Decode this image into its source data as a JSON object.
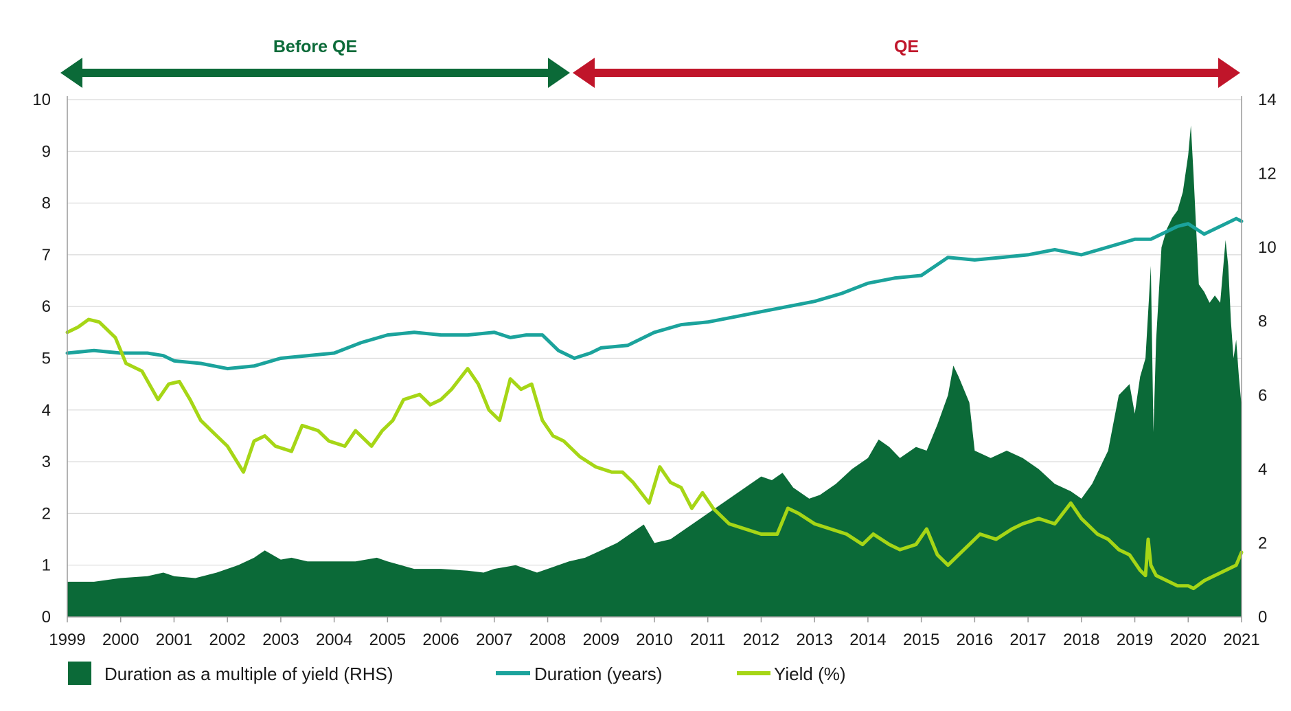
{
  "colors": {
    "area": "#0b6a38",
    "duration": "#1ba39c",
    "yield": "#a6d616",
    "before_qe": "#0b6a38",
    "qe": "#c0152a",
    "grid": "#d9d9d9",
    "axis": "#999999"
  },
  "annotations": {
    "before_qe": "Before QE",
    "qe": "QE"
  },
  "legend": {
    "area": "Duration as a multiple of yield (RHS)",
    "duration": "Duration (years)",
    "yield": "Yield (%)"
  },
  "chart_data": {
    "type": "area+line",
    "x_ticks": [
      "1999",
      "2000",
      "2001",
      "2002",
      "2003",
      "2004",
      "2005",
      "2006",
      "2007",
      "2008",
      "2009",
      "2010",
      "2011",
      "2012",
      "2013",
      "2014",
      "2015",
      "2016",
      "2017",
      "2018",
      "2019",
      "2020",
      "2021"
    ],
    "left_axis": {
      "ticks": [
        "0",
        "1",
        "2",
        "3",
        "4",
        "5",
        "6",
        "7",
        "8",
        "9",
        "10"
      ],
      "ylim": [
        0,
        10
      ]
    },
    "right_axis": {
      "ticks": [
        "0",
        "2",
        "4",
        "6",
        "8",
        "10",
        "12",
        "14"
      ],
      "ylim": [
        0,
        14
      ]
    },
    "annotation_ranges": {
      "before_qe": [
        1999.0,
        2008.7
      ],
      "qe": [
        2008.7,
        2021.0
      ]
    },
    "series": [
      {
        "name": "Duration as a multiple of yield (RHS)",
        "axis": "right",
        "kind": "area",
        "x": [
          1999.0,
          1999.5,
          2000.0,
          2000.5,
          2000.8,
          2001.0,
          2001.4,
          2001.8,
          2002.2,
          2002.5,
          2002.7,
          2003.0,
          2003.2,
          2003.5,
          2004.0,
          2004.4,
          2004.8,
          2005.0,
          2005.5,
          2006.0,
          2006.5,
          2006.8,
          2007.0,
          2007.4,
          2007.8,
          2008.0,
          2008.4,
          2008.7,
          2009.0,
          2009.3,
          2009.6,
          2009.8,
          2010.0,
          2010.3,
          2010.6,
          2010.9,
          2011.2,
          2011.5,
          2011.8,
          2012.0,
          2012.2,
          2012.4,
          2012.6,
          2012.9,
          2013.1,
          2013.4,
          2013.7,
          2014.0,
          2014.2,
          2014.4,
          2014.6,
          2014.9,
          2015.1,
          2015.3,
          2015.5,
          2015.6,
          2015.7,
          2015.9,
          2016.0,
          2016.3,
          2016.6,
          2016.9,
          2017.2,
          2017.5,
          2017.8,
          2018.0,
          2018.2,
          2018.5,
          2018.7,
          2018.9,
          2019.0,
          2019.1,
          2019.2,
          2019.3,
          2019.35,
          2019.4,
          2019.5,
          2019.6,
          2019.7,
          2019.8,
          2019.9,
          2020.0,
          2020.05,
          2020.1,
          2020.15,
          2020.2,
          2020.3,
          2020.4,
          2020.5,
          2020.6,
          2020.7,
          2020.75,
          2020.8,
          2020.85,
          2020.9,
          2020.95,
          2021.0
        ],
        "values": [
          0.95,
          0.95,
          1.05,
          1.1,
          1.2,
          1.1,
          1.05,
          1.2,
          1.4,
          1.6,
          1.8,
          1.55,
          1.6,
          1.5,
          1.5,
          1.5,
          1.6,
          1.5,
          1.3,
          1.3,
          1.25,
          1.2,
          1.3,
          1.4,
          1.2,
          1.3,
          1.5,
          1.6,
          1.8,
          2.0,
          2.3,
          2.5,
          2.0,
          2.1,
          2.4,
          2.7,
          3.0,
          3.3,
          3.6,
          3.8,
          3.7,
          3.9,
          3.5,
          3.2,
          3.3,
          3.6,
          4.0,
          4.3,
          4.8,
          4.6,
          4.3,
          4.6,
          4.5,
          5.2,
          6.0,
          6.8,
          6.5,
          5.8,
          4.5,
          4.3,
          4.5,
          4.3,
          4.0,
          3.6,
          3.4,
          3.2,
          3.6,
          4.5,
          6.0,
          6.3,
          5.5,
          6.5,
          7.0,
          9.5,
          5.0,
          7.5,
          10.0,
          10.5,
          10.8,
          11.0,
          11.5,
          12.5,
          13.3,
          12.0,
          10.5,
          9.0,
          8.8,
          8.5,
          8.7,
          8.5,
          10.2,
          9.5,
          8.0,
          7.0,
          7.5,
          6.5,
          5.7
        ]
      },
      {
        "name": "Duration (years)",
        "axis": "left",
        "kind": "line",
        "x": [
          1999.0,
          1999.5,
          2000.0,
          2000.5,
          2000.8,
          2001.0,
          2001.5,
          2002.0,
          2002.5,
          2003.0,
          2003.5,
          2004.0,
          2004.5,
          2005.0,
          2005.5,
          2006.0,
          2006.5,
          2007.0,
          2007.3,
          2007.6,
          2007.9,
          2008.2,
          2008.5,
          2008.8,
          2009.0,
          2009.5,
          2010.0,
          2010.5,
          2011.0,
          2011.5,
          2012.0,
          2012.5,
          2013.0,
          2013.5,
          2014.0,
          2014.5,
          2015.0,
          2015.5,
          2016.0,
          2016.5,
          2017.0,
          2017.5,
          2018.0,
          2018.5,
          2019.0,
          2019.3,
          2019.6,
          2019.8,
          2020.0,
          2020.3,
          2020.6,
          2020.9,
          2021.0
        ],
        "values": [
          5.1,
          5.15,
          5.1,
          5.1,
          5.05,
          4.95,
          4.9,
          4.8,
          4.85,
          5.0,
          5.05,
          5.1,
          5.3,
          5.45,
          5.5,
          5.45,
          5.45,
          5.5,
          5.4,
          5.45,
          5.45,
          5.15,
          5.0,
          5.1,
          5.2,
          5.25,
          5.5,
          5.65,
          5.7,
          5.8,
          5.9,
          6.0,
          6.1,
          6.25,
          6.45,
          6.55,
          6.6,
          6.95,
          6.9,
          6.95,
          7.0,
          7.1,
          7.0,
          7.15,
          7.3,
          7.3,
          7.45,
          7.55,
          7.6,
          7.4,
          7.55,
          7.7,
          7.65
        ]
      },
      {
        "name": "Yield (%)",
        "axis": "left",
        "kind": "line",
        "x": [
          1999.0,
          1999.2,
          1999.4,
          1999.6,
          1999.9,
          2000.1,
          2000.4,
          2000.7,
          2000.9,
          2001.1,
          2001.3,
          2001.5,
          2001.8,
          2002.0,
          2002.3,
          2002.5,
          2002.7,
          2002.9,
          2003.2,
          2003.4,
          2003.7,
          2003.9,
          2004.2,
          2004.4,
          2004.7,
          2004.9,
          2005.1,
          2005.3,
          2005.6,
          2005.8,
          2006.0,
          2006.2,
          2006.5,
          2006.7,
          2006.9,
          2007.1,
          2007.3,
          2007.5,
          2007.7,
          2007.9,
          2008.1,
          2008.3,
          2008.6,
          2008.9,
          2009.2,
          2009.4,
          2009.6,
          2009.9,
          2010.1,
          2010.3,
          2010.5,
          2010.7,
          2010.9,
          2011.1,
          2011.4,
          2011.7,
          2012.0,
          2012.3,
          2012.5,
          2012.7,
          2013.0,
          2013.3,
          2013.6,
          2013.9,
          2014.1,
          2014.4,
          2014.6,
          2014.9,
          2015.1,
          2015.3,
          2015.5,
          2015.7,
          2015.9,
          2016.1,
          2016.4,
          2016.7,
          2016.9,
          2017.2,
          2017.5,
          2017.8,
          2018.0,
          2018.3,
          2018.5,
          2018.7,
          2018.9,
          2019.1,
          2019.2,
          2019.25,
          2019.3,
          2019.4,
          2019.6,
          2019.8,
          2020.0,
          2020.1,
          2020.3,
          2020.5,
          2020.7,
          2020.9,
          2021.0
        ],
        "values": [
          5.5,
          5.6,
          5.75,
          5.7,
          5.4,
          4.9,
          4.75,
          4.2,
          4.5,
          4.55,
          4.2,
          3.8,
          3.5,
          3.3,
          2.8,
          3.4,
          3.5,
          3.3,
          3.2,
          3.7,
          3.6,
          3.4,
          3.3,
          3.6,
          3.3,
          3.6,
          3.8,
          4.2,
          4.3,
          4.1,
          4.2,
          4.4,
          4.8,
          4.5,
          4.0,
          3.8,
          4.6,
          4.4,
          4.5,
          3.8,
          3.5,
          3.4,
          3.1,
          2.9,
          2.8,
          2.8,
          2.6,
          2.2,
          2.9,
          2.6,
          2.5,
          2.1,
          2.4,
          2.1,
          1.8,
          1.7,
          1.6,
          1.6,
          2.1,
          2.0,
          1.8,
          1.7,
          1.6,
          1.4,
          1.6,
          1.4,
          1.3,
          1.4,
          1.7,
          1.2,
          1.0,
          1.2,
          1.4,
          1.6,
          1.5,
          1.7,
          1.8,
          1.9,
          1.8,
          2.2,
          1.9,
          1.6,
          1.5,
          1.3,
          1.2,
          0.9,
          0.8,
          1.5,
          1.0,
          0.8,
          0.7,
          0.6,
          0.6,
          0.55,
          0.7,
          0.8,
          0.9,
          1.0,
          1.25
        ]
      }
    ]
  }
}
